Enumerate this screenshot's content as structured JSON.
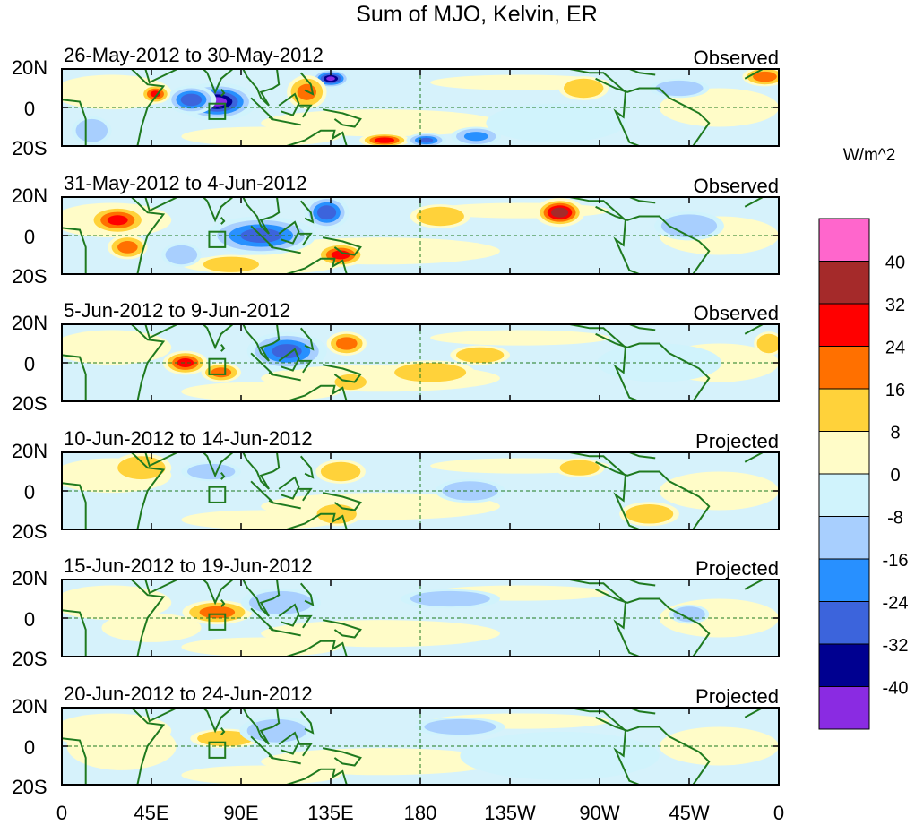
{
  "title": "Sum of MJO, Kelvin, ER",
  "chart_data": {
    "type": "heatmap",
    "title": "Sum of MJO, Kelvin, ER",
    "x_tick_labels": [
      "0",
      "45E",
      "90E",
      "135E",
      "180",
      "135W",
      "90W",
      "45W",
      "0"
    ],
    "y_tick_labels": [
      "20N",
      "0",
      "20S"
    ],
    "xlim": [
      0,
      360
    ],
    "ylim": [
      -20,
      20
    ],
    "colorbar": {
      "units": "W/m^2",
      "tick_labels": [
        "40",
        "32",
        "24",
        "16",
        "8",
        "0",
        "-8",
        "-16",
        "-24",
        "-32",
        "-40"
      ],
      "colors": [
        "#ff66cc",
        "#a52a2a",
        "#ff0000",
        "#ff7000",
        "#ffd23a",
        "#fffcc8",
        "#d0f3fc",
        "#a8cffe",
        "#2890ff",
        "#3c64dc",
        "#000090",
        "#8a2be2"
      ]
    },
    "panels": [
      {
        "period": "26-May-2012 to 30-May-2012",
        "status": "Observed",
        "anomalies": [
          {
            "lon": 78,
            "lat": 3,
            "rlon": 16,
            "rlat": 8,
            "value": -42
          },
          {
            "lon": 65,
            "lat": 4,
            "rlon": 10,
            "rlat": 6,
            "value": -30
          },
          {
            "lon": 135,
            "lat": 15,
            "rlon": 8,
            "rlat": 4,
            "value": -40
          },
          {
            "lon": 47,
            "lat": 7,
            "rlon": 6,
            "rlat": 4,
            "value": 24
          },
          {
            "lon": 123,
            "lat": 8,
            "rlon": 8,
            "rlat": 7,
            "value": 16
          },
          {
            "lon": 162,
            "lat": -17,
            "rlon": 10,
            "rlat": 3,
            "value": 28
          },
          {
            "lon": 183,
            "lat": -17,
            "rlon": 8,
            "rlat": 3,
            "value": -24
          },
          {
            "lon": 208,
            "lat": -15,
            "rlon": 10,
            "rlat": 4,
            "value": -16
          },
          {
            "lon": 353,
            "lat": 16,
            "rlon": 9,
            "rlat": 4,
            "value": 20
          },
          {
            "lon": 15,
            "lat": -12,
            "rlon": 8,
            "rlat": 6,
            "value": -10
          },
          {
            "lon": 262,
            "lat": 10,
            "rlon": 10,
            "rlat": 5,
            "value": 10
          },
          {
            "lon": 248,
            "lat": -8,
            "rlon": 28,
            "rlat": 8,
            "value": -6
          },
          {
            "lon": 310,
            "lat": 10,
            "rlon": 12,
            "rlat": 4,
            "value": -10
          }
        ]
      },
      {
        "period": "31-May-2012 to 4-Jun-2012",
        "status": "Observed",
        "anomalies": [
          {
            "lon": 28,
            "lat": 8,
            "rlon": 12,
            "rlat": 6,
            "value": 24
          },
          {
            "lon": 33,
            "lat": -6,
            "rlon": 8,
            "rlat": 5,
            "value": 18
          },
          {
            "lon": 100,
            "lat": 0,
            "rlon": 22,
            "rlat": 8,
            "value": -26
          },
          {
            "lon": 133,
            "lat": 12,
            "rlon": 9,
            "rlat": 7,
            "value": -30
          },
          {
            "lon": 140,
            "lat": -10,
            "rlon": 10,
            "rlat": 5,
            "value": 26
          },
          {
            "lon": 250,
            "lat": 12,
            "rlon": 10,
            "rlat": 6,
            "value": 38
          },
          {
            "lon": 60,
            "lat": -10,
            "rlon": 8,
            "rlat": 5,
            "value": -14
          },
          {
            "lon": 190,
            "lat": 10,
            "rlon": 12,
            "rlat": 5,
            "value": 10
          },
          {
            "lon": 315,
            "lat": 5,
            "rlon": 14,
            "rlat": 6,
            "value": -10
          },
          {
            "lon": 85,
            "lat": -15,
            "rlon": 14,
            "rlat": 4,
            "value": 10
          }
        ]
      },
      {
        "period": "5-Jun-2012 to 9-Jun-2012",
        "status": "Observed",
        "anomalies": [
          {
            "lon": 62,
            "lat": 0,
            "rlon": 9,
            "rlat": 5,
            "value": 26
          },
          {
            "lon": 80,
            "lat": -5,
            "rlon": 8,
            "rlat": 4,
            "value": 18
          },
          {
            "lon": 113,
            "lat": 6,
            "rlon": 16,
            "rlat": 8,
            "value": -26
          },
          {
            "lon": 143,
            "lat": 10,
            "rlon": 8,
            "rlat": 5,
            "value": 20
          },
          {
            "lon": 145,
            "lat": -10,
            "rlon": 8,
            "rlat": 4,
            "value": 14
          },
          {
            "lon": 210,
            "lat": 4,
            "rlon": 12,
            "rlat": 4,
            "value": 14
          },
          {
            "lon": 185,
            "lat": -5,
            "rlon": 18,
            "rlat": 5,
            "value": 10
          },
          {
            "lon": 355,
            "lat": 10,
            "rlon": 6,
            "rlat": 5,
            "value": 12
          },
          {
            "lon": 300,
            "lat": 0,
            "rlon": 25,
            "rlat": 8,
            "value": -6
          }
        ]
      },
      {
        "period": "10-Jun-2012 to 14-Jun-2012",
        "status": "Projected",
        "anomalies": [
          {
            "lon": 40,
            "lat": 12,
            "rlon": 12,
            "rlat": 6,
            "value": 10
          },
          {
            "lon": 140,
            "lat": 10,
            "rlon": 10,
            "rlat": 5,
            "value": 14
          },
          {
            "lon": 138,
            "lat": -12,
            "rlon": 10,
            "rlat": 5,
            "value": 12
          },
          {
            "lon": 205,
            "lat": 0,
            "rlon": 14,
            "rlat": 5,
            "value": -10
          },
          {
            "lon": 295,
            "lat": -12,
            "rlon": 12,
            "rlat": 5,
            "value": 12
          },
          {
            "lon": 75,
            "lat": 10,
            "rlon": 12,
            "rlat": 4,
            "value": -8
          },
          {
            "lon": 260,
            "lat": 12,
            "rlon": 10,
            "rlat": 4,
            "value": 8
          }
        ]
      },
      {
        "period": "15-Jun-2012 to 19-Jun-2012",
        "status": "Projected",
        "anomalies": [
          {
            "lon": 78,
            "lat": 3,
            "rlon": 14,
            "rlat": 5,
            "value": 18
          },
          {
            "lon": 110,
            "lat": 8,
            "rlon": 16,
            "rlat": 6,
            "value": -8
          },
          {
            "lon": 195,
            "lat": 10,
            "rlon": 20,
            "rlat": 4,
            "value": -9
          },
          {
            "lon": 315,
            "lat": 2,
            "rlon": 8,
            "rlat": 4,
            "value": -10
          },
          {
            "lon": 45,
            "lat": -5,
            "rlon": 20,
            "rlat": 6,
            "value": 6
          }
        ]
      },
      {
        "period": "20-Jun-2012 to 24-Jun-2012",
        "status": "Projected",
        "anomalies": [
          {
            "lon": 82,
            "lat": 4,
            "rlon": 14,
            "rlat": 4,
            "value": 14
          },
          {
            "lon": 108,
            "lat": 8,
            "rlon": 15,
            "rlat": 6,
            "value": -8
          },
          {
            "lon": 200,
            "lat": 10,
            "rlon": 18,
            "rlat": 4,
            "value": -9
          },
          {
            "lon": 30,
            "lat": 0,
            "rlon": 22,
            "rlat": 10,
            "value": 6
          },
          {
            "lon": 250,
            "lat": -5,
            "rlon": 40,
            "rlat": 10,
            "value": -5
          }
        ]
      }
    ]
  }
}
